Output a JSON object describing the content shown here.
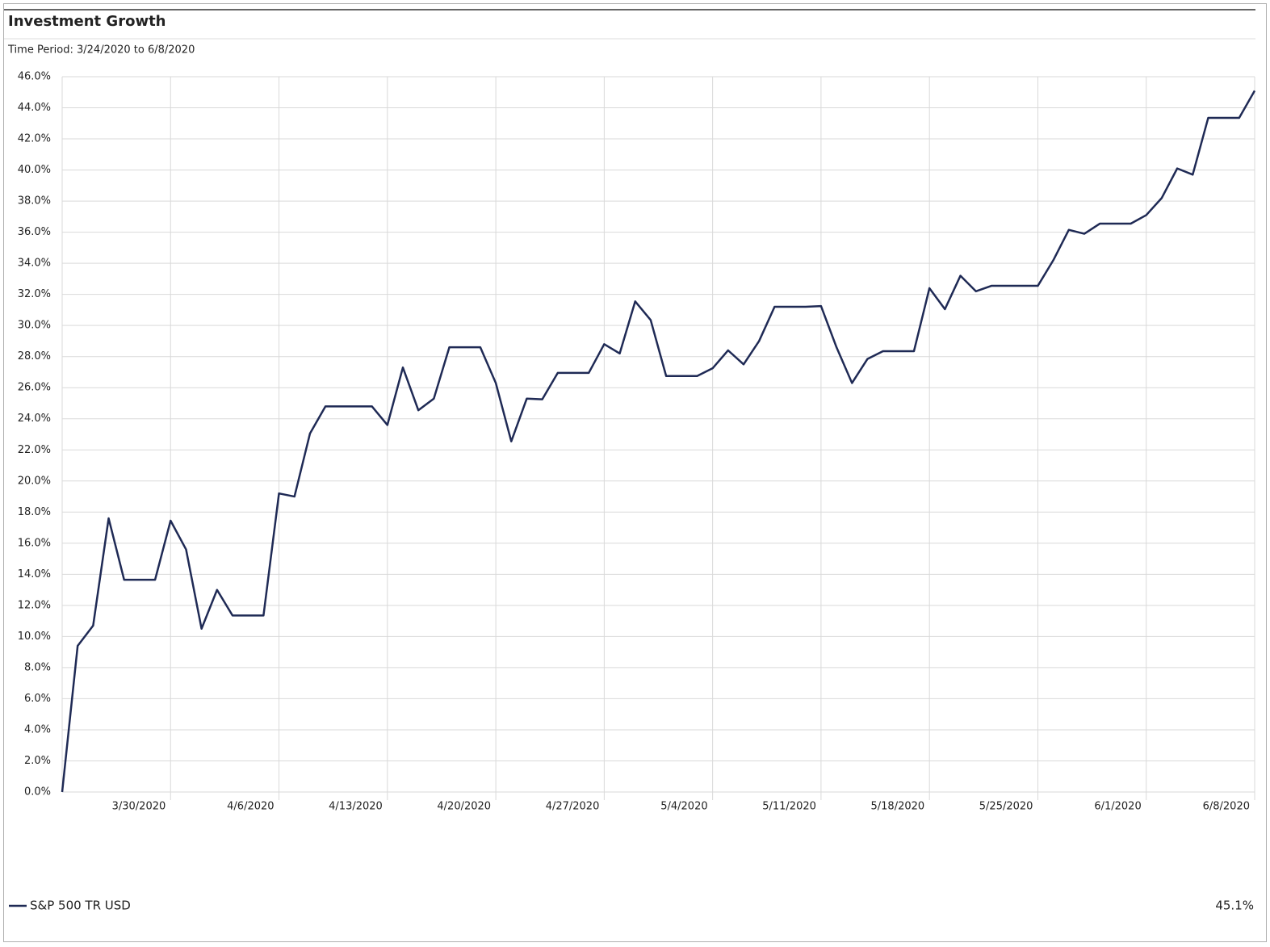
{
  "chart_data": {
    "type": "line",
    "title": "Investment Growth",
    "subtitle": "Time Period: 3/24/2020 to 6/8/2020",
    "x": [
      "2020-03-23",
      "2020-03-24",
      "2020-03-25",
      "2020-03-26",
      "2020-03-27",
      "2020-03-28",
      "2020-03-29",
      "2020-03-30",
      "2020-03-31",
      "2020-04-01",
      "2020-04-02",
      "2020-04-03",
      "2020-04-04",
      "2020-04-05",
      "2020-04-06",
      "2020-04-07",
      "2020-04-08",
      "2020-04-09",
      "2020-04-10",
      "2020-04-11",
      "2020-04-12",
      "2020-04-13",
      "2020-04-14",
      "2020-04-15",
      "2020-04-16",
      "2020-04-17",
      "2020-04-18",
      "2020-04-19",
      "2020-04-20",
      "2020-04-21",
      "2020-04-22",
      "2020-04-23",
      "2020-04-24",
      "2020-04-25",
      "2020-04-26",
      "2020-04-27",
      "2020-04-28",
      "2020-04-29",
      "2020-04-30",
      "2020-05-01",
      "2020-05-02",
      "2020-05-03",
      "2020-05-04",
      "2020-05-05",
      "2020-05-06",
      "2020-05-07",
      "2020-05-08",
      "2020-05-09",
      "2020-05-10",
      "2020-05-11",
      "2020-05-12",
      "2020-05-13",
      "2020-05-14",
      "2020-05-15",
      "2020-05-16",
      "2020-05-17",
      "2020-05-18",
      "2020-05-19",
      "2020-05-20",
      "2020-05-21",
      "2020-05-22",
      "2020-05-23",
      "2020-05-24",
      "2020-05-25",
      "2020-05-26",
      "2020-05-27",
      "2020-05-28",
      "2020-05-29",
      "2020-05-30",
      "2020-05-31",
      "2020-06-01",
      "2020-06-02",
      "2020-06-03",
      "2020-06-04",
      "2020-06-05",
      "2020-06-06",
      "2020-06-07",
      "2020-06-08"
    ],
    "series": [
      {
        "name": "S&P 500 TR USD",
        "color": "#1f2a55",
        "legend_value": "45.1%",
        "values": [
          0,
          9.4,
          10.7,
          17.6,
          13.65,
          13.65,
          13.65,
          17.45,
          15.6,
          10.5,
          13.0,
          11.35,
          11.35,
          11.35,
          19.2,
          19.0,
          23.05,
          24.8,
          24.8,
          24.8,
          24.8,
          23.6,
          27.3,
          24.55,
          25.3,
          28.6,
          28.6,
          28.6,
          26.3,
          22.55,
          25.3,
          25.25,
          26.95,
          26.95,
          26.95,
          28.8,
          28.2,
          31.55,
          30.35,
          26.75,
          26.75,
          26.75,
          27.25,
          28.4,
          27.5,
          29.0,
          31.2,
          31.2,
          31.2,
          31.25,
          28.6,
          26.3,
          27.85,
          28.35,
          28.35,
          28.35,
          32.4,
          31.05,
          33.2,
          32.2,
          32.55,
          32.55,
          32.55,
          32.55,
          34.2,
          36.15,
          35.9,
          36.55,
          36.55,
          36.55,
          37.1,
          38.2,
          40.1,
          39.7,
          43.35,
          43.35,
          43.35,
          45.1
        ]
      }
    ],
    "xlim": [
      "2020-03-23",
      "2020-06-08"
    ],
    "xticks": [
      {
        "value": "2020-03-30",
        "label": "3/30/2020"
      },
      {
        "value": "2020-04-06",
        "label": "4/6/2020"
      },
      {
        "value": "2020-04-13",
        "label": "4/13/2020"
      },
      {
        "value": "2020-04-20",
        "label": "4/20/2020"
      },
      {
        "value": "2020-04-27",
        "label": "4/27/2020"
      },
      {
        "value": "2020-05-04",
        "label": "5/4/2020"
      },
      {
        "value": "2020-05-11",
        "label": "5/11/2020"
      },
      {
        "value": "2020-05-18",
        "label": "5/18/2020"
      },
      {
        "value": "2020-05-25",
        "label": "5/25/2020"
      },
      {
        "value": "2020-06-01",
        "label": "6/1/2020"
      },
      {
        "value": "2020-06-08",
        "label": "6/8/2020"
      }
    ],
    "ylim": [
      0,
      46
    ],
    "yticks": [
      {
        "value": 0,
        "label": "0.0%"
      },
      {
        "value": 2,
        "label": "2.0%"
      },
      {
        "value": 4,
        "label": "4.0%"
      },
      {
        "value": 6,
        "label": "6.0%"
      },
      {
        "value": 8,
        "label": "8.0%"
      },
      {
        "value": 10,
        "label": "10.0%"
      },
      {
        "value": 12,
        "label": "12.0%"
      },
      {
        "value": 14,
        "label": "14.0%"
      },
      {
        "value": 16,
        "label": "16.0%"
      },
      {
        "value": 18,
        "label": "18.0%"
      },
      {
        "value": 20,
        "label": "20.0%"
      },
      {
        "value": 22,
        "label": "22.0%"
      },
      {
        "value": 24,
        "label": "24.0%"
      },
      {
        "value": 26,
        "label": "26.0%"
      },
      {
        "value": 28,
        "label": "28.0%"
      },
      {
        "value": 30,
        "label": "30.0%"
      },
      {
        "value": 32,
        "label": "32.0%"
      },
      {
        "value": 34,
        "label": "34.0%"
      },
      {
        "value": 36,
        "label": "36.0%"
      },
      {
        "value": 38,
        "label": "38.0%"
      },
      {
        "value": 40,
        "label": "40.0%"
      },
      {
        "value": 42,
        "label": "42.0%"
      },
      {
        "value": 44,
        "label": "44.0%"
      },
      {
        "value": 46,
        "label": "46.0%"
      }
    ],
    "grid": true
  }
}
